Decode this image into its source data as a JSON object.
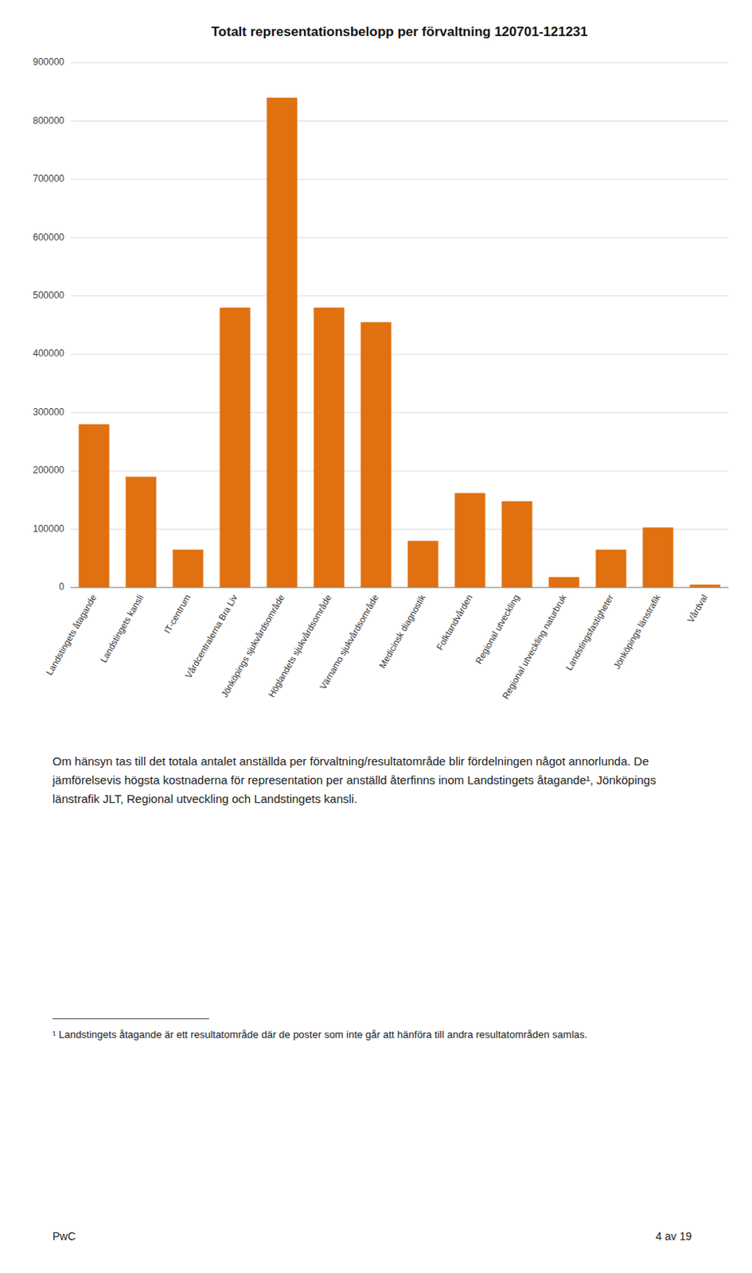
{
  "chart_data": {
    "type": "bar",
    "title": "Totalt representationsbelopp per förvaltning 120701-121231",
    "categories": [
      "Landstingets åtagande",
      "Landstingets kansli",
      "IT-centrum",
      "Vårdcentralerna Bra Liv",
      "Jönköpings sjukvårdsområde",
      "Höglandets sjukvårdsområde",
      "Värnamo sjukvårdsområde",
      "Medicinsk diagnostik",
      "Folktandvården",
      "Regional utveckling",
      "Regional utveckling naturbruk",
      "Landstingsfastigheter",
      "Jönköpings länstrafik",
      "Vårdval"
    ],
    "values": [
      280000,
      190000,
      65000,
      480000,
      840000,
      480000,
      455000,
      80000,
      162000,
      148000,
      18000,
      65000,
      103000,
      5000
    ],
    "color": "#E07010",
    "ylim": [
      0,
      900000
    ],
    "yticks": [
      0,
      100000,
      200000,
      300000,
      400000,
      500000,
      600000,
      700000,
      800000,
      900000
    ],
    "grid": true,
    "annotations": [
      "Om hänsyn tas till det totala antalet anställda per förvaltning/resultatområde blir fördelningen något annorlunda. De jämförelsevis högsta kostnaderna för representation per anställd återfinns inom Landstingets åtagande¹, Jönköpings länstrafik JLT, Regional utveckling och Landstingets kansli.",
      "¹ Landstingets åtagande är ett resultatområde där de poster som inte går att hänföra till andra resultatområden samlas.",
      "PwC",
      "4 av 19"
    ]
  }
}
